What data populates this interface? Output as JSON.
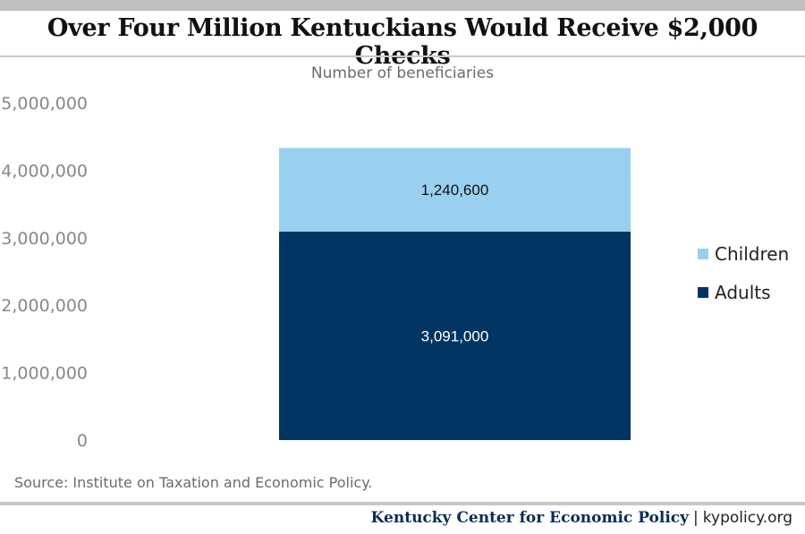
{
  "title": "Over Four Million Kentuckians Would Receive $2,000 Checks",
  "source": "Source: Institute on Taxation and Economic Policy.",
  "footer": {
    "org": "Kentucky Center for Economic Policy",
    "separator": "|",
    "url": "kypolicy.org"
  },
  "colors": {
    "adults": "#003462",
    "children": "#99d0f0"
  },
  "chart_data": {
    "type": "bar",
    "stacked": true,
    "title": "Number of beneficiaries",
    "categories": [
      ""
    ],
    "series": [
      {
        "name": "Adults",
        "values": [
          3091000
        ],
        "label": "3,091,000",
        "color": "#003462",
        "label_color": "#ffffff"
      },
      {
        "name": "Children",
        "values": [
          1240600
        ],
        "label": "1,240,600",
        "color": "#99d0f0",
        "label_color": "#111111"
      }
    ],
    "ylim": [
      0,
      5000000
    ],
    "yticks": [
      0,
      1000000,
      2000000,
      3000000,
      4000000,
      5000000
    ],
    "ytick_labels": [
      "0",
      "1,000,000",
      "2,000,000",
      "3,000,000",
      "4,000,000",
      "5,000,000"
    ],
    "xlabel": "",
    "ylabel": "",
    "grid": false,
    "legend": {
      "position": "right",
      "entries": [
        "Children",
        "Adults"
      ]
    }
  }
}
